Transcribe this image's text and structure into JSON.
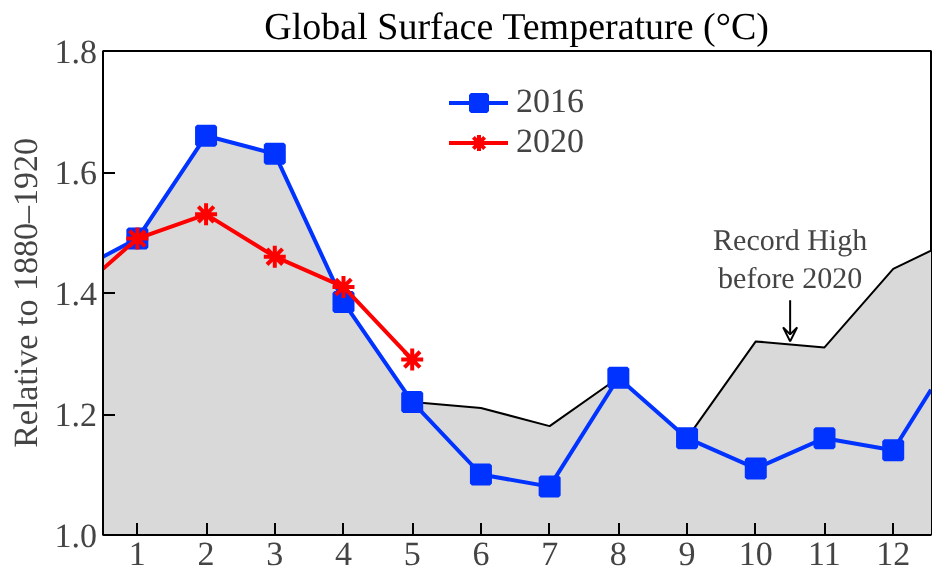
{
  "chart_data": {
    "type": "line",
    "title": "Global Surface Temperature (°C)",
    "ylabel": "Relative to 1880–1920",
    "xlim": [
      0.5,
      12.55
    ],
    "xticks": [
      1,
      2,
      3,
      4,
      5,
      6,
      7,
      8,
      9,
      10,
      11,
      12
    ],
    "ylim": [
      1.0,
      1.8
    ],
    "yticks": [
      {
        "value": 1.0,
        "label": "1.0"
      },
      {
        "value": 1.2,
        "label": "1.2"
      },
      {
        "value": 1.4,
        "label": "1.4"
      },
      {
        "value": 1.6,
        "label": "1.6"
      },
      {
        "value": 1.8,
        "label": "1.8"
      }
    ],
    "grid": false,
    "legend": "top",
    "line_style": "solid",
    "series": [
      {
        "type": "area",
        "color": "#d9d9d9",
        "x": [
          0.5,
          1,
          2,
          3,
          4,
          5,
          6,
          7,
          8,
          9,
          10,
          11,
          12,
          12.55
        ],
        "values": [
          1.46,
          1.49,
          1.66,
          1.63,
          1.385,
          1.22,
          1.21,
          1.18,
          1.26,
          1.16,
          1.32,
          1.31,
          1.44,
          1.47
        ]
      },
      {
        "name": "2016",
        "color": "#0033ff",
        "marker": "square",
        "x": [
          0.5,
          1,
          2,
          3,
          4,
          5,
          6,
          7,
          8,
          9,
          10,
          11,
          12,
          12.55
        ],
        "values": [
          1.46,
          1.49,
          1.66,
          1.63,
          1.385,
          1.22,
          1.1,
          1.08,
          1.26,
          1.16,
          1.11,
          1.16,
          1.14,
          1.24
        ]
      },
      {
        "name": "2020",
        "color": "#ff0000",
        "marker": "cross",
        "x": [
          0.5,
          1,
          2,
          3,
          4,
          5
        ],
        "values": [
          1.44,
          1.49,
          1.53,
          1.46,
          1.41,
          1.29
        ]
      }
    ],
    "annotations": [
      {
        "text": "Record High\nbefore 2020",
        "x": 10.5,
        "y": 1.32
      }
    ]
  }
}
